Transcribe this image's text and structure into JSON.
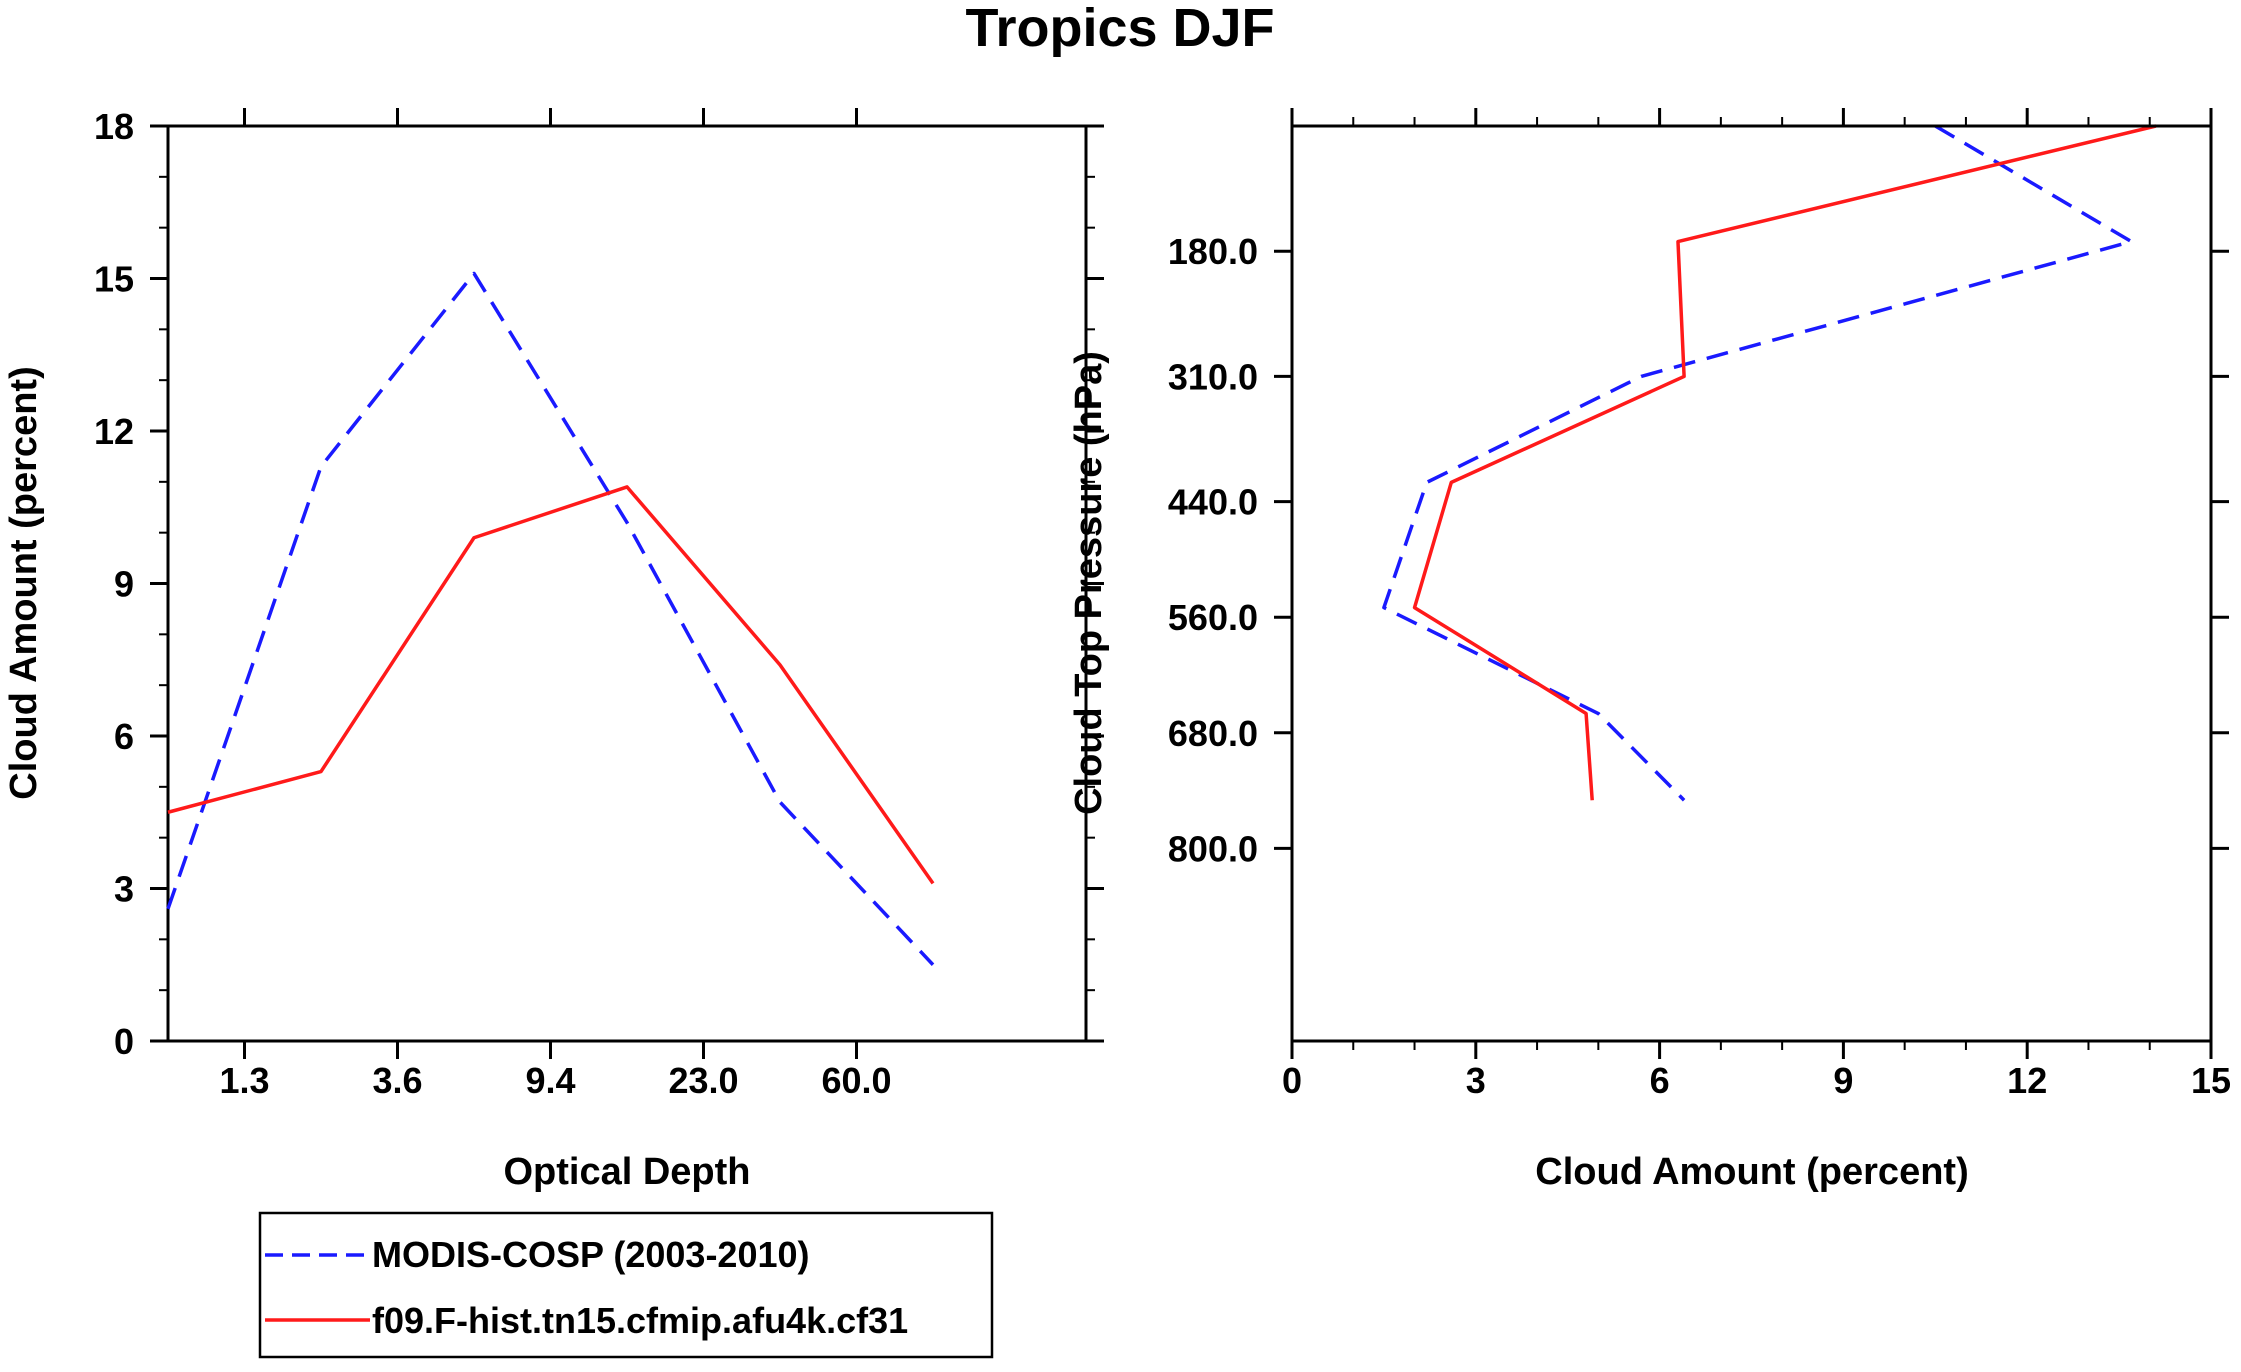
{
  "title": "Tropics DJF",
  "colors": {
    "obs": "#1a1aff",
    "model": "#ff1a1a",
    "axis": "#000000"
  },
  "chart_data": [
    {
      "id": "left",
      "type": "line",
      "title": "Tropics DJF",
      "xlabel": "Optical Depth",
      "ylabel": "Cloud Amount (percent)",
      "x_scale": "category-index",
      "xlim": [
        0,
        6
      ],
      "ylim": [
        0,
        18
      ],
      "x_ticks": [
        {
          "pos": 0.5,
          "label": "1.3"
        },
        {
          "pos": 1.5,
          "label": "3.6"
        },
        {
          "pos": 2.5,
          "label": "9.4"
        },
        {
          "pos": 3.5,
          "label": "23.0"
        },
        {
          "pos": 4.5,
          "label": "60.0"
        }
      ],
      "y_ticks": [
        0,
        3,
        6,
        9,
        12,
        15,
        18
      ],
      "series": [
        {
          "name": "MODIS-COSP (2003-2010)",
          "style": "dashed",
          "color": "#1a1aff",
          "x": [
            0,
            1,
            2,
            3,
            4,
            5
          ],
          "y": [
            2.6,
            11.3,
            15.1,
            10.2,
            4.7,
            1.5
          ]
        },
        {
          "name": "f09.F-hist.tn15.cfmip.afu4k.cf31",
          "style": "solid",
          "color": "#ff1a1a",
          "x": [
            0,
            1,
            2,
            3,
            4,
            5
          ],
          "y": [
            4.5,
            5.3,
            9.9,
            10.9,
            7.4,
            3.1
          ]
        }
      ]
    },
    {
      "id": "right",
      "type": "line",
      "xlabel": "Cloud Amount (percent)",
      "ylabel": "Cloud Top Pressure (hPa)",
      "xlim": [
        0,
        15
      ],
      "ylim": [
        1000,
        50
      ],
      "x_ticks": [
        0,
        3,
        6,
        9,
        12,
        15
      ],
      "y_ticks": [
        {
          "value": 180,
          "label": "180.0"
        },
        {
          "value": 310,
          "label": "310.0"
        },
        {
          "value": 440,
          "label": "440.0"
        },
        {
          "value": 560,
          "label": "560.0"
        },
        {
          "value": 680,
          "label": "680.0"
        },
        {
          "value": 800,
          "label": "800.0"
        }
      ],
      "series": [
        {
          "name": "MODIS-COSP (2003-2010)",
          "style": "dashed",
          "color": "#1a1aff",
          "x": [
            10.5,
            13.7,
            5.7,
            2.2,
            1.5,
            5.0,
            6.4
          ],
          "p": [
            50,
            170,
            310,
            420,
            550,
            660,
            750
          ]
        },
        {
          "name": "f09.F-hist.tn15.cfmip.afu4k.cf31",
          "style": "solid",
          "color": "#ff1a1a",
          "x": [
            14.1,
            6.3,
            6.4,
            2.6,
            2.0,
            4.8,
            4.9
          ],
          "p": [
            50,
            170,
            310,
            420,
            550,
            660,
            750
          ]
        }
      ]
    }
  ],
  "legend": {
    "placement": "bottom-left",
    "entries": [
      {
        "label": "MODIS-COSP (2003-2010)",
        "style": "dashed",
        "color": "#1a1aff"
      },
      {
        "label": "f09.F-hist.tn15.cfmip.afu4k.cf31",
        "style": "solid",
        "color": "#ff1a1a"
      }
    ]
  }
}
